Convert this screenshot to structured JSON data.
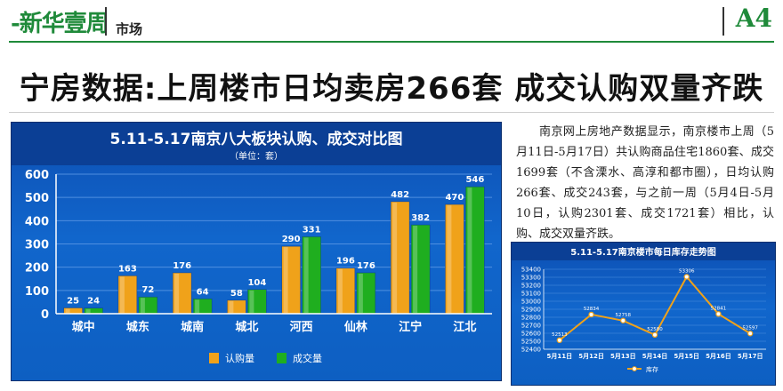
{
  "masthead": {
    "brand": "新华壹周",
    "section": "市场",
    "page": "A4"
  },
  "headline": "宁房数据:上周楼市日均卖房266套 成交认购双量齐跌",
  "article": "南京网上房地产数据显示，南京楼市上周（5月11日-5月17日）共认购商品住宅1860套、成交1699套（不含溧水、高淳和都市圈），日均认购266套、成交243套，与之前一周（5月4日-5月10日，认购2301套、成交1721套）相比，认购、成交双量齐跌。",
  "chart_data": [
    {
      "type": "bar",
      "title": "5.11-5.17南京八大板块认购、成交对比图",
      "subtitle": "（单位：套）",
      "categories": [
        "城中",
        "城东",
        "城南",
        "城北",
        "河西",
        "仙林",
        "江宁",
        "江北"
      ],
      "series": [
        {
          "name": "认购量",
          "values": [
            25,
            163,
            176,
            58,
            290,
            196,
            482,
            470
          ],
          "color": "#f0a21a"
        },
        {
          "name": "成交量",
          "values": [
            24,
            72,
            64,
            104,
            331,
            176,
            382,
            546
          ],
          "color": "#1fae1f"
        }
      ],
      "ylim": [
        0,
        600
      ],
      "yticks": [
        0,
        100,
        200,
        300,
        400,
        500,
        600
      ],
      "grid": true,
      "legend": "bottom"
    },
    {
      "type": "line",
      "title": "5.11-5.17南京楼市每日库存走势图",
      "categories": [
        "5月11日",
        "5月12日",
        "5月13日",
        "5月14日",
        "5月15日",
        "5月16日",
        "5月17日"
      ],
      "series": [
        {
          "name": "库存",
          "values": [
            52513,
            52834,
            52758,
            52580,
            53306,
            52841,
            52597
          ],
          "color": "#f0a21a"
        }
      ],
      "ylim": [
        52400,
        53400
      ],
      "yticks": [
        52400,
        52500,
        52600,
        52700,
        52800,
        52900,
        53000,
        53100,
        53200,
        53300,
        53400
      ],
      "grid": true,
      "legend": "bottom"
    }
  ]
}
